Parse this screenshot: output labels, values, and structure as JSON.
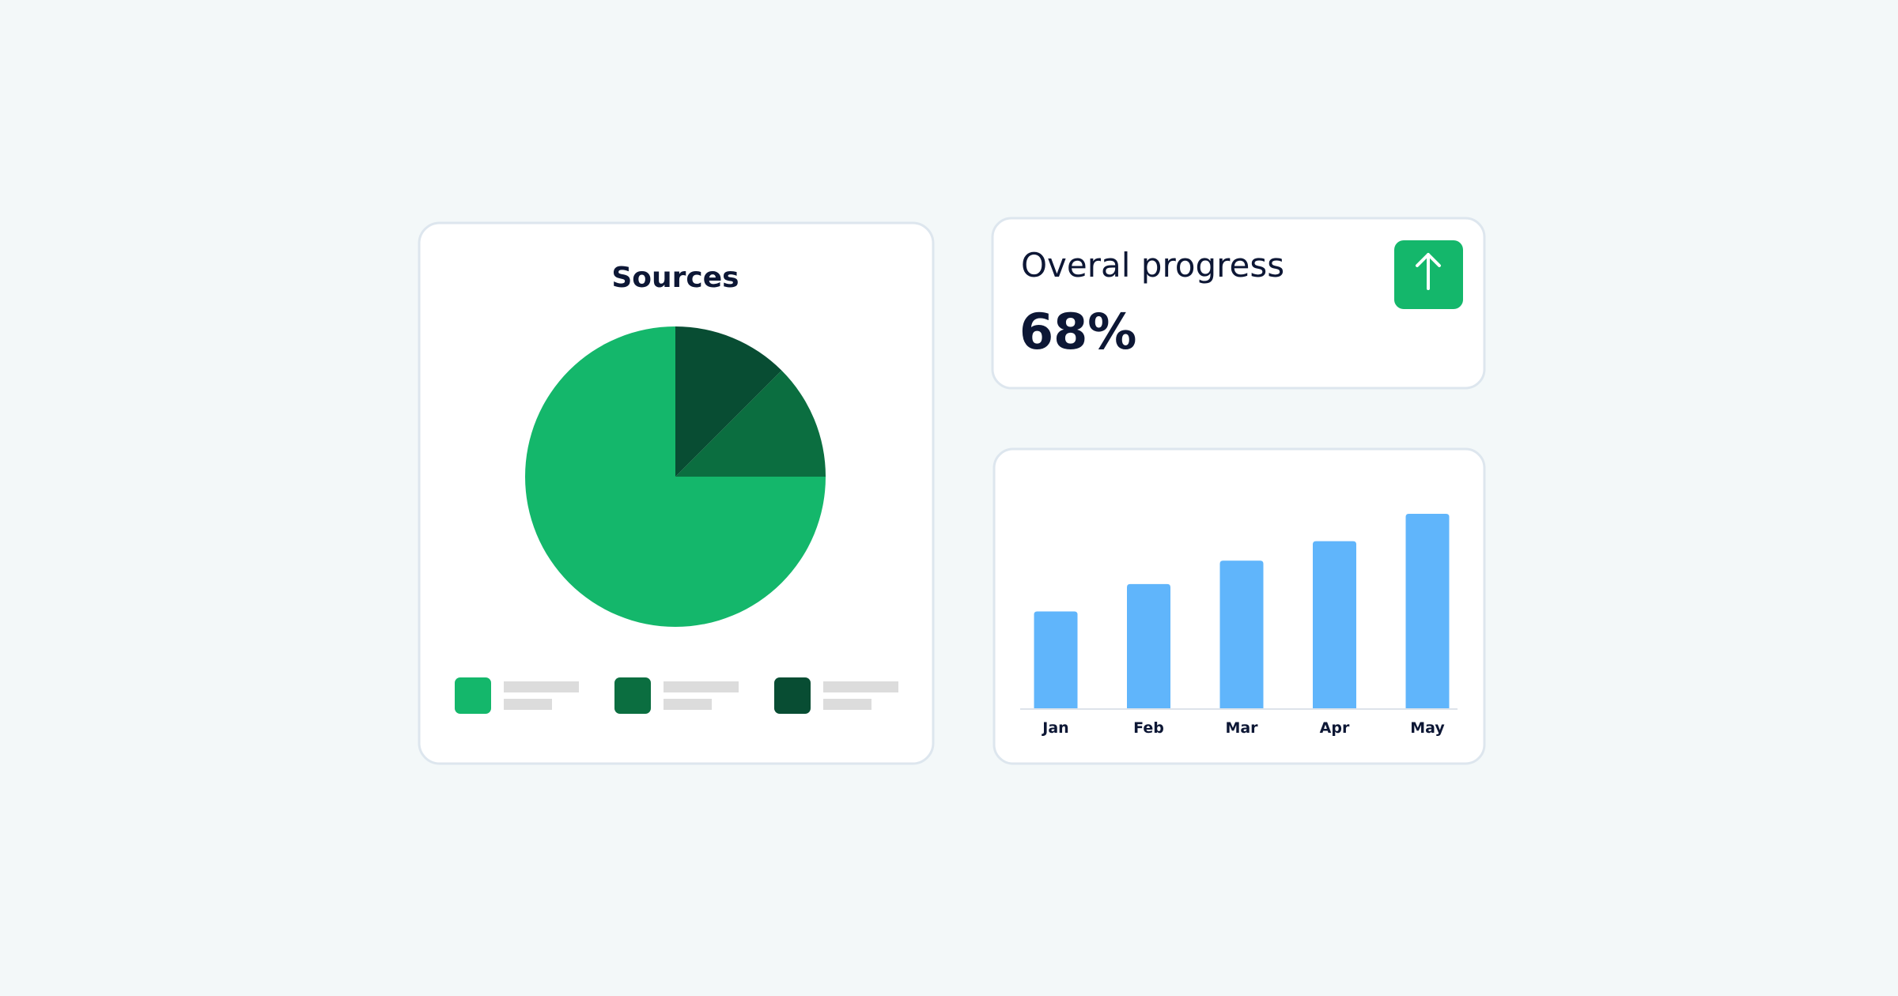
{
  "kpi": {
    "label": "Overal progress",
    "value": "68%"
  },
  "chart_data": [
    {
      "type": "pie",
      "title": "Sources",
      "values": [
        75,
        12.5,
        12.5
      ],
      "colors": [
        "#14b76b",
        "#0b6e40",
        "#084d33"
      ],
      "start_angle": 0,
      "direction": "counterclockwise"
    },
    {
      "type": "bar",
      "categories": [
        "Jan",
        "Feb",
        "Mar",
        "Apr",
        "May"
      ],
      "values": [
        50,
        64,
        76,
        86,
        100
      ],
      "color": "#60b5fb",
      "ylim": [
        0,
        100
      ]
    }
  ]
}
